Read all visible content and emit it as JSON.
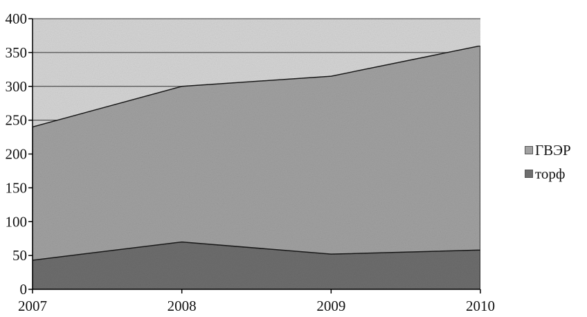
{
  "chart_data": {
    "type": "area",
    "stacked": true,
    "categories": [
      "2007",
      "2008",
      "2009",
      "2010"
    ],
    "series": [
      {
        "name": "торф",
        "values": [
          43,
          70,
          52,
          58
        ],
        "color": "#6e6e6e"
      },
      {
        "name": "ГВЭР",
        "values": [
          197,
          230,
          263,
          302
        ],
        "color": "#a2a2a2"
      }
    ],
    "ylim": [
      0,
      400
    ],
    "yticks": [
      "0",
      "50",
      "100",
      "150",
      "200",
      "250",
      "300",
      "350",
      "400"
    ],
    "grid": true,
    "legend_position": "right",
    "plot_background": "#d6d6d6",
    "title": "",
    "xlabel": "",
    "ylabel": ""
  },
  "legend": {
    "items": [
      {
        "label": "ГВЭР",
        "color": "#a2a2a2"
      },
      {
        "label": "торф",
        "color": "#6e6e6e"
      }
    ]
  }
}
